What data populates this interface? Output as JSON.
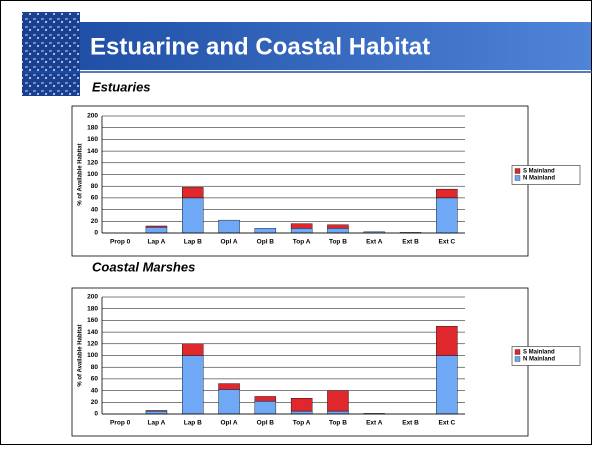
{
  "title": "Estuarine and Coastal Habitat",
  "chart_data": [
    {
      "type": "stacked-bar",
      "title": "Estuaries",
      "y_label": "% of Available Habitat",
      "categories": [
        "Prop 0",
        "Lap A",
        "Lap B",
        "Opl A",
        "Opl B",
        "Top A",
        "Top B",
        "Ext A",
        "Ext B",
        "Ext C"
      ],
      "series": [
        {
          "name": "S Mainland",
          "color": "#e0282c",
          "values": [
            0,
            2,
            18,
            0,
            0,
            8,
            6,
            0,
            0,
            15
          ]
        },
        {
          "name": "N Mainland",
          "color": "#6fa8f5",
          "values": [
            0,
            10,
            60,
            22,
            8,
            8,
            8,
            2,
            1,
            60
          ]
        }
      ],
      "ylim": [
        0,
        200
      ],
      "yticks": [
        0,
        20,
        40,
        60,
        80,
        100,
        120,
        140,
        160,
        180,
        200
      ],
      "grid": true,
      "legend": "right"
    },
    {
      "type": "stacked-bar",
      "title": "Coastal Marshes",
      "y_label": "% of Available Habitat",
      "categories": [
        "Prop 0",
        "Lap A",
        "Lap B",
        "Opl A",
        "Opl B",
        "Top A",
        "Top B",
        "Ext A",
        "Ext B",
        "Ext C"
      ],
      "series": [
        {
          "name": "S Mainland",
          "color": "#e0282c",
          "values": [
            0,
            1,
            20,
            10,
            8,
            22,
            35,
            0,
            0,
            50
          ]
        },
        {
          "name": "N Mainland",
          "color": "#6fa8f5",
          "values": [
            0,
            5,
            100,
            42,
            22,
            5,
            5,
            1,
            0,
            100
          ]
        }
      ],
      "ylim": [
        0,
        200
      ],
      "yticks": [
        0,
        20,
        40,
        60,
        80,
        100,
        120,
        140,
        160,
        180,
        200
      ],
      "grid": true,
      "legend": "right"
    }
  ]
}
